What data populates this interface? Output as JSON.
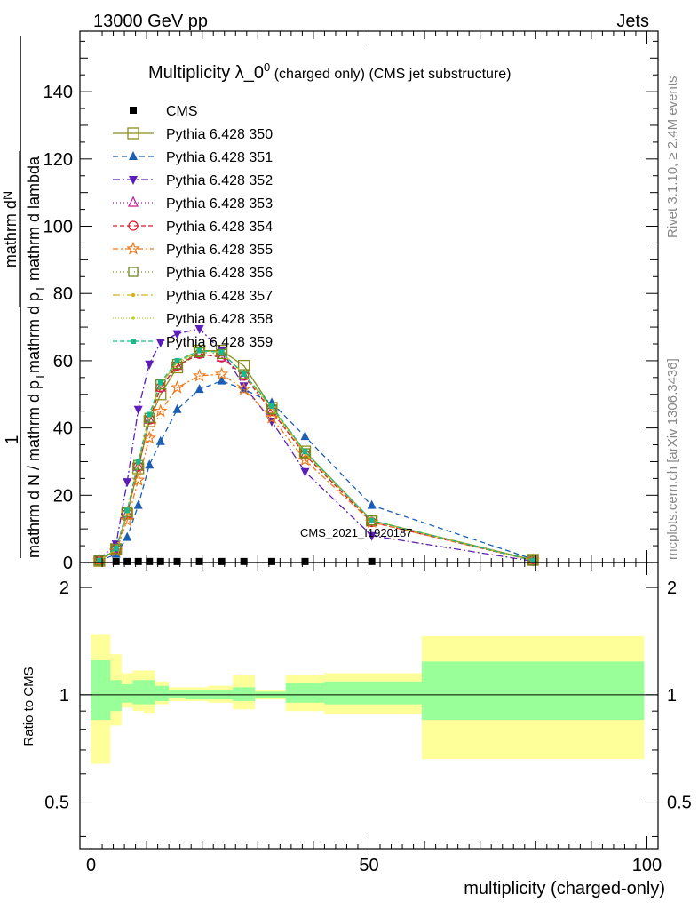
{
  "header": {
    "left": "13000 GeV pp",
    "right": "Jets"
  },
  "watermark_top": "Rivet 3.1.10, ≥ 2.4M events",
  "watermark_bottom": "mcplots.cern.ch [arXiv:1306.3436]",
  "chart_data": [
    {
      "type": "line",
      "title_main": "Multiplicity λ_0",
      "title_sup": "0",
      "title_sub": " (charged only) (CMS jet substructure)",
      "ylabel_top": "1",
      "ylabel_frac_num": "mathrm d",
      "ylabel_frac_num2": "N",
      "ylabel_frac_den": "mathrm d p",
      "ylabel_frac_den_sub": "T",
      "ylabel_frac_den2": " mathrm d lambda",
      "ylabel_left_den": "mathrm d N / mathrm d p",
      "ylabel_left_den_sub": "T",
      "ylabel_left_den2": "mathrm d p",
      "ylabel_left_den2_sub": "T",
      "ylabel_left_den3": "mathrm d lambda",
      "xlim": [
        -2,
        102
      ],
      "ylim": [
        0,
        158
      ],
      "yticks": [
        0,
        20,
        40,
        60,
        80,
        100,
        120,
        140
      ],
      "annotation": "CMS_2021_I1920187",
      "x": [
        1.5,
        4.5,
        6.5,
        8.5,
        10.5,
        12.5,
        15.5,
        19.5,
        23.5,
        27.5,
        32.5,
        38.5,
        50.5,
        79.5
      ],
      "series": [
        {
          "name": "CMS",
          "color": "#000000",
          "dash": "",
          "marker": "square-filled",
          "values": [
            0.3,
            0.3,
            0.3,
            0.3,
            0.3,
            0.3,
            0.3,
            0.3,
            0.3,
            0.3,
            0.3,
            0.3,
            0.3,
            0.1
          ]
        },
        {
          "name": "Pythia 6.428 350",
          "color": "#8c8c1a",
          "dash": "",
          "marker": "square-open",
          "values": [
            0.5,
            4,
            14.5,
            28,
            42,
            50,
            58,
            63,
            63,
            58.5,
            46,
            33,
            12.5,
            0.8
          ]
        },
        {
          "name": "Pythia 6.428 351",
          "color": "#1a5fb4",
          "dash": "6,4",
          "marker": "triangle-up-filled",
          "values": [
            0.4,
            2.5,
            7.5,
            17,
            29,
            36,
            45.5,
            51.5,
            54,
            51.5,
            47.5,
            37.5,
            17,
            1.0
          ]
        },
        {
          "name": "Pythia 6.428 352",
          "color": "#5b1fb8",
          "dash": "8,3,2,3",
          "marker": "triangle-down-filled",
          "values": [
            1.0,
            5.5,
            24,
            45.5,
            59,
            65.5,
            68,
            69.5,
            63,
            52.5,
            42,
            27,
            8,
            0.4
          ]
        },
        {
          "name": "Pythia 6.428 353",
          "color": "#c2188c",
          "dash": "1,3",
          "marker": "triangle-up-open",
          "values": [
            0.6,
            4,
            14.5,
            28.5,
            42.5,
            52,
            58.5,
            62,
            61,
            55.5,
            45,
            32,
            12,
            0.6
          ]
        },
        {
          "name": "Pythia 6.428 354",
          "color": "#d81b30",
          "dash": "5,3",
          "marker": "circle-open",
          "values": [
            0.6,
            4,
            14.5,
            28.5,
            42.5,
            52,
            58.5,
            62,
            61,
            55.5,
            45,
            32,
            12,
            0.6
          ]
        },
        {
          "name": "Pythia 6.428 355",
          "color": "#f07a1a",
          "dash": "6,3,2,3",
          "marker": "star-open",
          "values": [
            0.5,
            3.5,
            12.5,
            24.5,
            37,
            45,
            52,
            55.5,
            56,
            51.5,
            43,
            30.5,
            12,
            0.7
          ]
        },
        {
          "name": "Pythia 6.428 356",
          "color": "#6e8a1a",
          "dash": "1,3",
          "marker": "square-open-small",
          "values": [
            0.6,
            4,
            15,
            29,
            43,
            53,
            59,
            62.5,
            62,
            56,
            45.5,
            32.5,
            12.5,
            0.6
          ]
        },
        {
          "name": "Pythia 6.428 357",
          "color": "#d4b21a",
          "dash": "8,3,2,3",
          "marker": "dot",
          "values": [
            0.6,
            4,
            15,
            29.5,
            43.5,
            53,
            59.5,
            63,
            62.5,
            56,
            46,
            32.5,
            12.5,
            0.6
          ]
        },
        {
          "name": "Pythia 6.428 358",
          "color": "#b8d41a",
          "dash": "1,2",
          "marker": "dot-small",
          "values": [
            0.6,
            4,
            15,
            29.5,
            43.5,
            53,
            59.5,
            63,
            62.5,
            56,
            46,
            32.5,
            12.5,
            0.6
          ]
        },
        {
          "name": "Pythia 6.428 359",
          "color": "#1ab88a",
          "dash": "5,3",
          "marker": "square-filled-small",
          "values": [
            0.6,
            4.2,
            15.5,
            30,
            44,
            53.5,
            60,
            63,
            62.5,
            56,
            46.5,
            33,
            12.5,
            0.6
          ]
        }
      ]
    },
    {
      "type": "area",
      "ylabel": "Ratio to CMS",
      "xlabel": "multiplicity (charged-only)",
      "xlim": [
        -2,
        102
      ],
      "ylim": [
        0.37,
        2.35
      ],
      "yticks": [
        0.5,
        1,
        2
      ],
      "ytick_labels": [
        "0.5",
        "1",
        "2"
      ],
      "xticks": [
        0,
        50,
        100
      ],
      "xtick_labels": [
        "0",
        "50",
        "100"
      ],
      "bins": [
        {
          "lo": 0,
          "hi": 3.5,
          "stat_lo": 0.85,
          "stat_hi": 1.25,
          "tot_lo": 0.64,
          "tot_hi": 1.48
        },
        {
          "lo": 3.5,
          "hi": 5.5,
          "stat_lo": 0.9,
          "stat_hi": 1.1,
          "tot_lo": 0.82,
          "tot_hi": 1.3
        },
        {
          "lo": 5.5,
          "hi": 7.5,
          "stat_lo": 0.95,
          "stat_hi": 1.07,
          "tot_lo": 0.92,
          "tot_hi": 1.15
        },
        {
          "lo": 7.5,
          "hi": 9.5,
          "stat_lo": 0.94,
          "stat_hi": 1.1,
          "tot_lo": 0.9,
          "tot_hi": 1.17
        },
        {
          "lo": 9.5,
          "hi": 11.5,
          "stat_lo": 0.94,
          "stat_hi": 1.1,
          "tot_lo": 0.89,
          "tot_hi": 1.17
        },
        {
          "lo": 11.5,
          "hi": 14,
          "stat_lo": 0.96,
          "stat_hi": 1.06,
          "tot_lo": 0.94,
          "tot_hi": 1.09
        },
        {
          "lo": 14,
          "hi": 17,
          "stat_lo": 0.98,
          "stat_hi": 1.03,
          "tot_lo": 0.96,
          "tot_hi": 1.05
        },
        {
          "lo": 17,
          "hi": 21,
          "stat_lo": 0.97,
          "stat_hi": 1.03,
          "tot_lo": 0.96,
          "tot_hi": 1.05
        },
        {
          "lo": 21,
          "hi": 25.5,
          "stat_lo": 0.97,
          "stat_hi": 1.03,
          "tot_lo": 0.95,
          "tot_hi": 1.06
        },
        {
          "lo": 25.5,
          "hi": 29.5,
          "stat_lo": 0.96,
          "stat_hi": 1.05,
          "tot_lo": 0.91,
          "tot_hi": 1.14
        },
        {
          "lo": 29.5,
          "hi": 35,
          "stat_lo": 0.98,
          "stat_hi": 1.02,
          "tot_lo": 0.97,
          "tot_hi": 1.03
        },
        {
          "lo": 35,
          "hi": 42,
          "stat_lo": 0.95,
          "stat_hi": 1.08,
          "tot_lo": 0.9,
          "tot_hi": 1.14
        },
        {
          "lo": 42,
          "hi": 59.5,
          "stat_lo": 0.94,
          "stat_hi": 1.09,
          "tot_lo": 0.88,
          "tot_hi": 1.15
        },
        {
          "lo": 59.5,
          "hi": 99.5,
          "stat_lo": 0.85,
          "stat_hi": 1.24,
          "tot_lo": 0.66,
          "tot_hi": 1.46
        }
      ],
      "band_colors": {
        "stat": "#99ff99",
        "total": "#ffff99"
      }
    }
  ]
}
